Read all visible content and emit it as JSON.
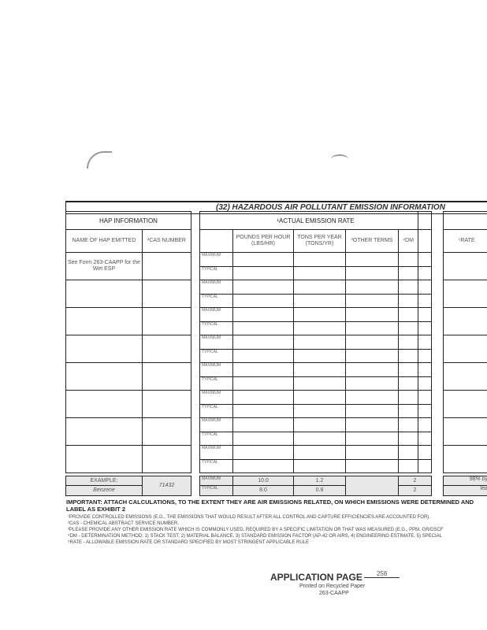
{
  "form": {
    "section_title": "(32) HAZARDOUS AIR POLLUTANT EMISSION INFORMATION",
    "hap_header": "HAP INFORMATION",
    "col_name": "NAME OF HAP EMITTED",
    "col_cas": "²CAS NUMBER",
    "actual_header": "¹ACTUAL EMISSION RATE",
    "col_lbs": "POUNDS PER HOUR (LBS/HR)",
    "col_tons": "TONS PER YEAR (TONS/YR)",
    "col_other": "³OTHER TERMS",
    "col_dm": "⁴DM",
    "col_rate": "⁵RATE",
    "label_max": "MAXIMUM",
    "label_typ": "TYPICAL",
    "rows": [
      {
        "name": "See Form 263-CAAPP for the Wet ESP",
        "cas": ""
      },
      {
        "name": "",
        "cas": ""
      },
      {
        "name": "",
        "cas": ""
      },
      {
        "name": "",
        "cas": ""
      },
      {
        "name": "",
        "cas": ""
      },
      {
        "name": "",
        "cas": ""
      },
      {
        "name": "",
        "cas": ""
      },
      {
        "name": "",
        "cas": ""
      }
    ],
    "example": {
      "label": "EXAMPLE:",
      "name": "Benzene",
      "cas": "71432",
      "max_lbs": "10.0",
      "max_tons": "1.2",
      "max_dm": "2",
      "typ_lbs": "8.0",
      "typ_tons": "0.8",
      "typ_dm": "2",
      "rate_1": "98% by",
      "rate_2": "lea"
    }
  },
  "notes": {
    "important": "IMPORTANT: ATTACH CALCULATIONS, TO THE EXTENT THEY ARE AIR EMISSIONS RELATED, ON WHICH EMISSIONS WERE DETERMINED AND LABEL AS EXHIBIT 2",
    "footnotes": [
      "¹PROVIDE CONTROLLED EMISSIONS (E.G., THE EMISSIONS THAT WOULD RESULT AFTER ALL CONTROL AND CAPTURE EFFICIENCIES ARE ACCOUNTED FOR).",
      "²CAS - CHEMICAL ABSTRACT SERVICE NUMBER.",
      "³PLEASE PROVIDE ANY OTHER EMISSION RATE WHICH IS COMMONLY USED, REQUIRED BY A SPECIFIC LIMITATION OR THAT WAS MEASURED (E.G., PPM, GR/DSCF",
      "⁴DM - DETERMINATION METHOD: 1) STACK TEST, 2) MATERIAL BALANCE, 3) STANDARD EMISSION FACTOR (AP-42 OR AIRS, 4) ENGINEERING ESTIMATE, 5) SPECIAL",
      "⁵RATE - ALLOWABLE EMISSION RATE OR STANDARD SPECIFIED BY MOST STRINGENT APPLICABLE RULE"
    ]
  },
  "footer": {
    "application_page_label": "APPLICATION PAGE",
    "page_number": "258",
    "recycled": "Printed on Recycled Paper",
    "form_id": "263-CAAPP"
  }
}
